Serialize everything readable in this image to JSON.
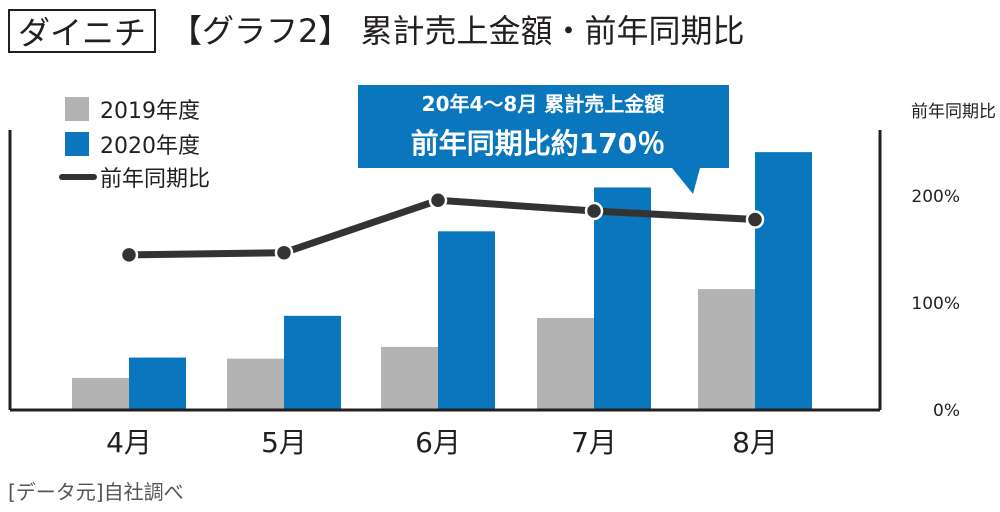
{
  "header": {
    "brand": "ダイニチ",
    "title": "【グラフ2】 累計売上金額・前年同期比"
  },
  "source": "[データ元]自社調べ",
  "colors": {
    "series_2019": "#b3b3b3",
    "series_2020": "#0a76bd",
    "yoy_line": "#333333",
    "annotation_bg": "#0a76bd"
  },
  "chart_data": {
    "type": "bar",
    "categories": [
      "4月",
      "5月",
      "6月",
      "7月",
      "8月"
    ],
    "series": [
      {
        "name": "2019年度",
        "type": "bar",
        "values": [
          30,
          48,
          59,
          86,
          113
        ]
      },
      {
        "name": "2020年度",
        "type": "bar",
        "values": [
          49,
          88,
          167,
          208,
          241
        ]
      }
    ],
    "yoy_series": {
      "name": "前年同期比",
      "type": "line",
      "axis": "right",
      "values": [
        145,
        147,
        196,
        186,
        178
      ]
    },
    "y2label": "前年同期比",
    "y2ticks": [
      "0%",
      "100%",
      "200%"
    ],
    "legend_position": "top-left",
    "annotation": {
      "line1": "20年4～8月 累計売上金額",
      "line2": "前年同期比約170％"
    }
  }
}
